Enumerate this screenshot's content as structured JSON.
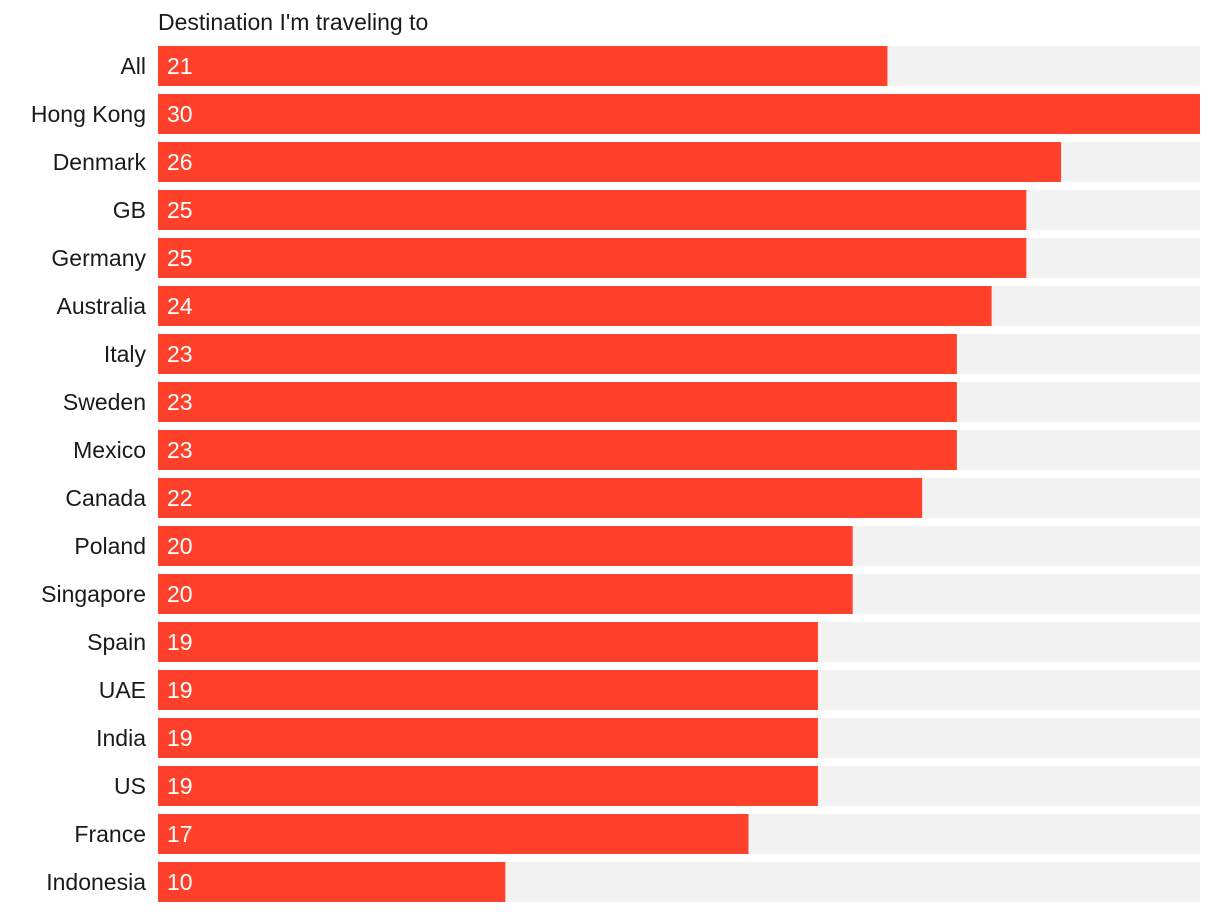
{
  "chart_data": {
    "type": "bar",
    "orientation": "horizontal",
    "title": "Destination I'm traveling to",
    "categories": [
      "All",
      "Hong Kong",
      "Denmark",
      "GB",
      "Germany",
      "Australia",
      "Italy",
      "Sweden",
      "Mexico",
      "Canada",
      "Poland",
      "Singapore",
      "Spain",
      "UAE",
      "India",
      "US",
      "France",
      "Indonesia"
    ],
    "values": [
      21,
      30,
      26,
      25,
      25,
      24,
      23,
      23,
      23,
      22,
      20,
      20,
      19,
      19,
      19,
      19,
      17,
      10
    ],
    "xlim": [
      0,
      30
    ],
    "xlabel": "",
    "ylabel": "",
    "grid": false
  },
  "colors": {
    "bar": "#ff412c",
    "track": "#f2f2f2",
    "label": "#1a1a1a",
    "value_text": "#ffffff"
  }
}
